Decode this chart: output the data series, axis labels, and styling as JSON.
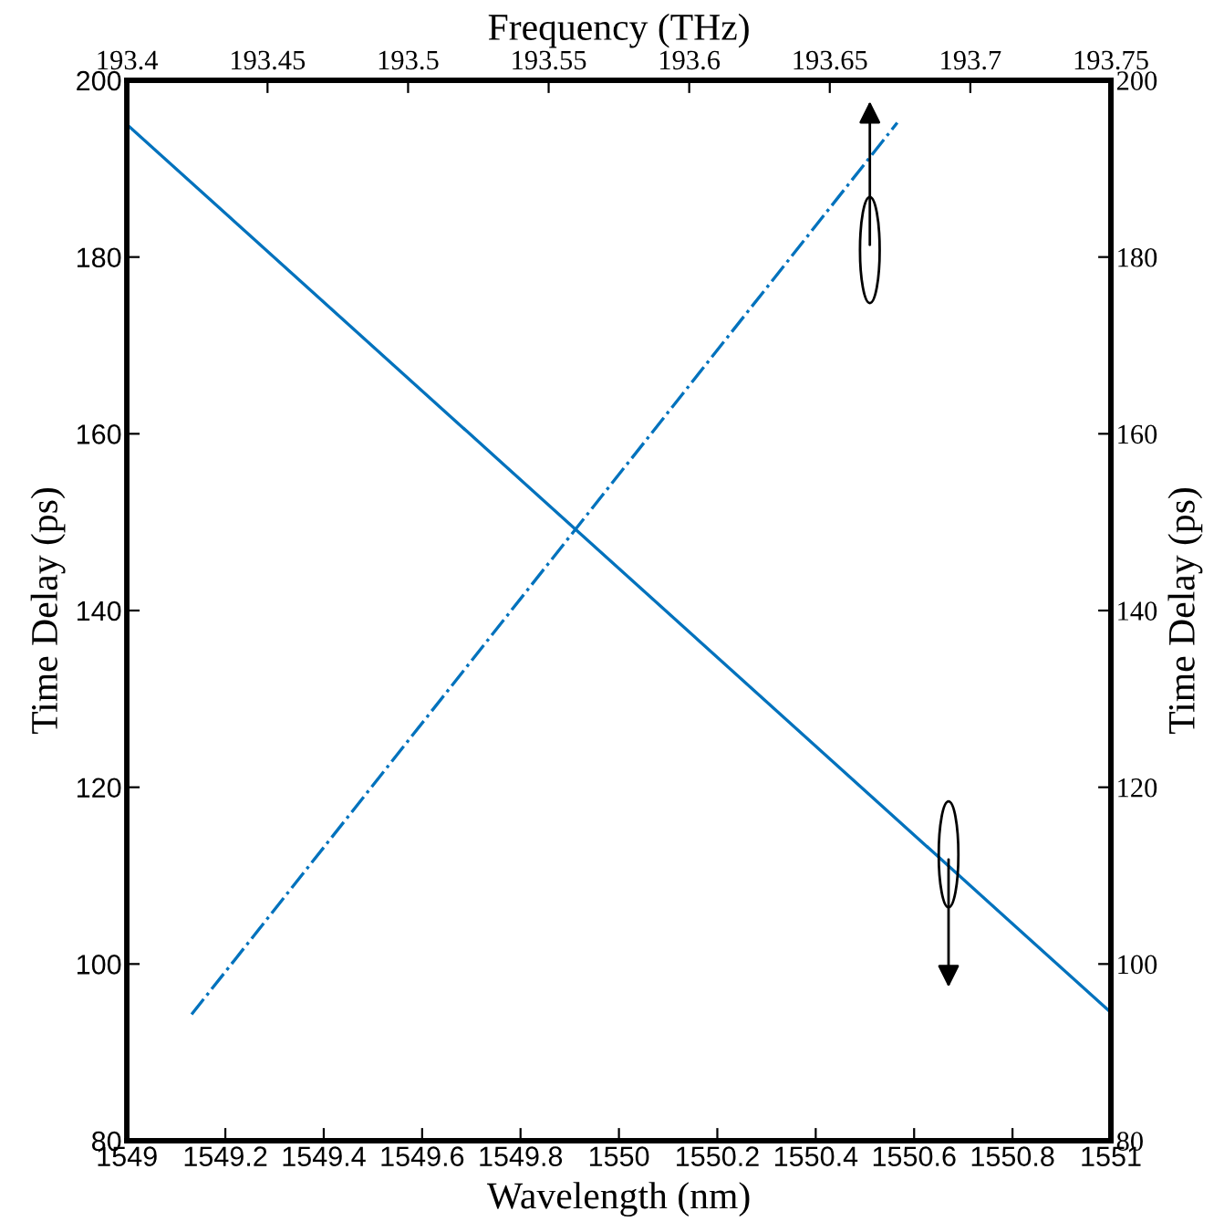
{
  "chart_data": {
    "type": "line",
    "xlabel": "Wavelength (nm)",
    "x2label": "Frequency (THz)",
    "ylabel": "Time Delay (ps)",
    "y2label": "Time Delay (ps)",
    "series": [
      {
        "color": "#0072bd",
        "line_style": "solid",
        "x": [
          1549,
          1551
        ],
        "values": [
          195.0,
          94.5
        ]
      },
      {
        "color": "#0072bd",
        "line_style": "dashdot",
        "axis": "x2",
        "x": [
          193.423,
          193.674
        ],
        "values": [
          94.3,
          195.2
        ]
      }
    ],
    "xlim": [
      1549,
      1551
    ],
    "xticks": [
      1549,
      1549.2,
      1549.4,
      1549.6,
      1549.8,
      1550,
      1550.2,
      1550.4,
      1550.6,
      1550.8,
      1551
    ],
    "x2lim": [
      193.4,
      193.75
    ],
    "x2ticks": [
      193.4,
      193.45,
      193.5,
      193.55,
      193.6,
      193.65,
      193.7,
      193.75
    ],
    "ylim": [
      80,
      200
    ],
    "yticks": [
      80,
      100,
      120,
      140,
      160,
      180,
      200
    ],
    "y2lim": [
      80,
      200
    ],
    "y2ticks": [
      80,
      100,
      120,
      140,
      160,
      180,
      200
    ],
    "grid": false,
    "legend": false
  }
}
